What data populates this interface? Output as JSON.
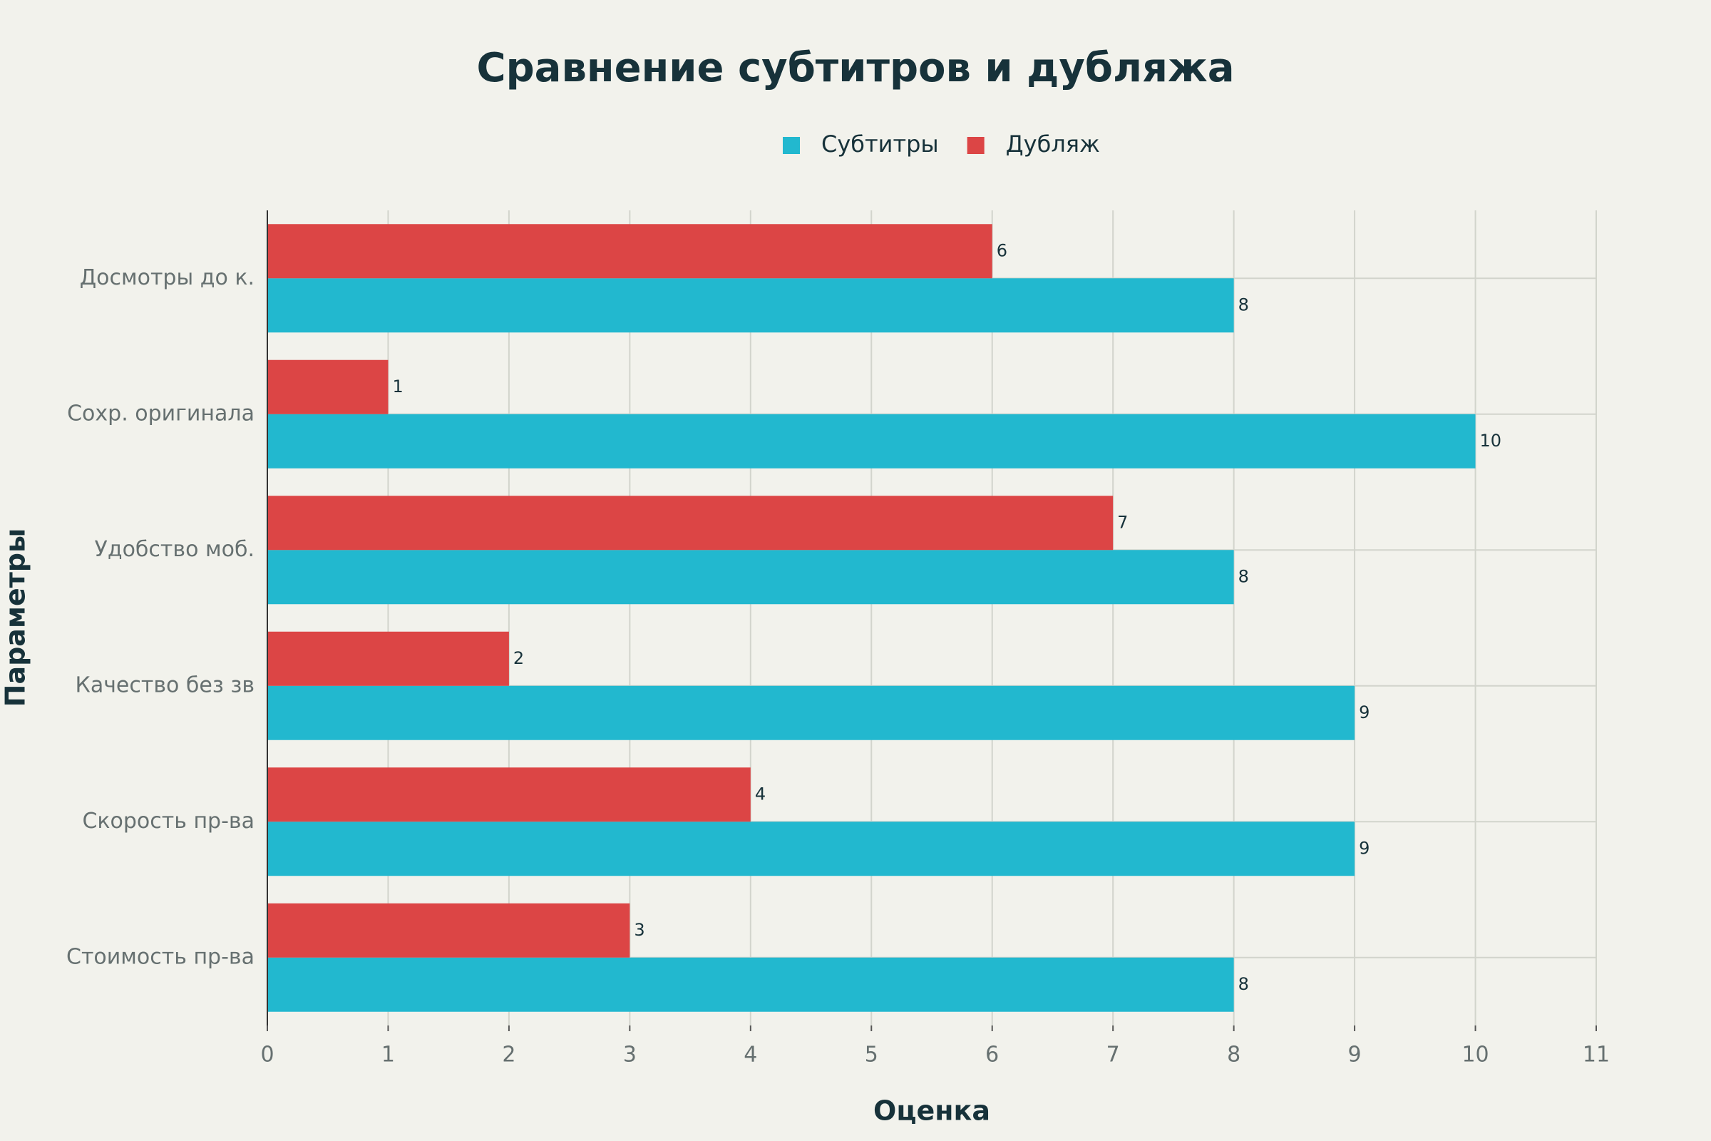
{
  "chart_data": {
    "type": "bar",
    "orientation": "horizontal",
    "title": "Сравнение субтитров и дубляжа",
    "x_label": "Оценка",
    "y_label": "Параметры",
    "categories": [
      "Досмотры до к.",
      "Сохр. оригинала",
      "Удобство моб.",
      "Качество без зв",
      "Скорость пр-ва",
      "Стоимость пр-ва"
    ],
    "series": [
      {
        "name": "Субтитры",
        "color": "#22b8cf",
        "values": [
          8,
          10,
          8,
          9,
          9,
          8
        ]
      },
      {
        "name": "Дубляж",
        "color": "#dc4545",
        "values": [
          6,
          1,
          7,
          2,
          4,
          3
        ]
      }
    ],
    "xlim": [
      0,
      11
    ],
    "xticks": [
      0,
      1,
      2,
      3,
      4,
      5,
      6,
      7,
      8,
      9,
      10,
      11
    ],
    "grid": true,
    "legend": "top"
  }
}
